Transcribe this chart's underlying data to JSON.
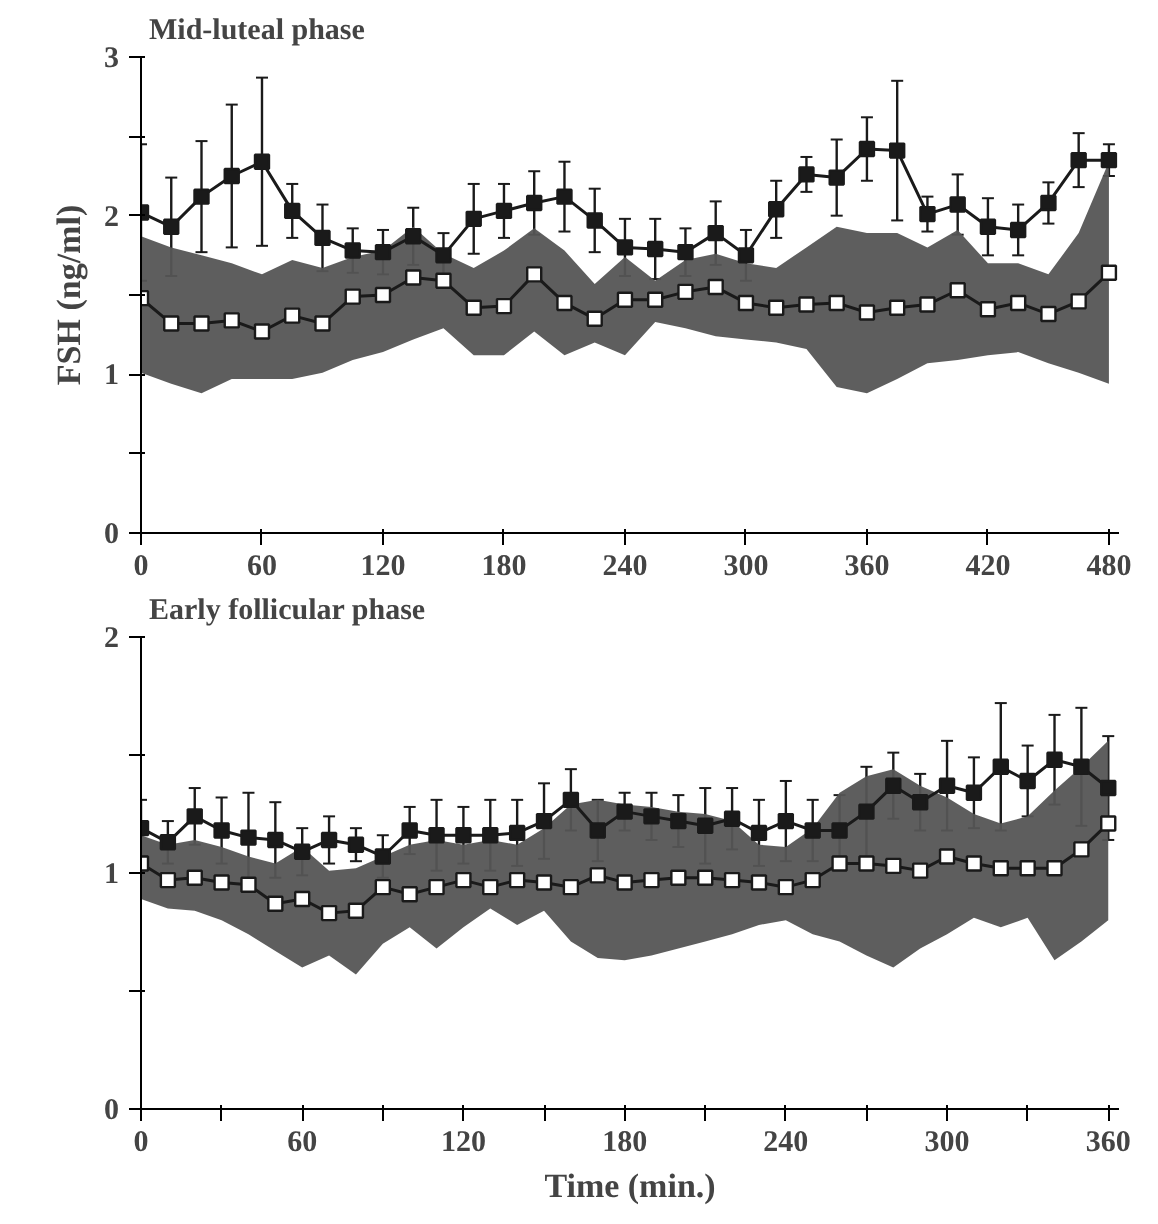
{
  "chart_data": [
    {
      "type": "line",
      "title": "Mid-luteal phase",
      "ylabel": "FSH (ng/ml)",
      "x": [
        0,
        15,
        30,
        45,
        60,
        75,
        90,
        105,
        120,
        135,
        150,
        165,
        180,
        195,
        210,
        225,
        240,
        255,
        270,
        285,
        300,
        315,
        330,
        345,
        360,
        375,
        390,
        405,
        420,
        435,
        450,
        465,
        480
      ],
      "xlim": [
        0,
        485
      ],
      "ylim": [
        0,
        3
      ],
      "xticks": [
        0,
        60,
        120,
        180,
        240,
        300,
        360,
        420,
        480
      ],
      "yticks": [
        0,
        {
          "value": 0.5,
          "label": null
        },
        1,
        {
          "value": 1.5,
          "label": null
        },
        2,
        {
          "value": 2.5,
          "label": null
        },
        3
      ],
      "series": [
        {
          "marker": "square",
          "color": "#ffffff",
          "lower": [
            1.01,
            0.94,
            0.88,
            0.97,
            0.97,
            0.97,
            1.01,
            1.09,
            1.14,
            1.22,
            1.29,
            1.12,
            1.12,
            1.27,
            1.12,
            1.2,
            1.12,
            1.33,
            1.29,
            1.24,
            1.22,
            1.2,
            1.16,
            0.92,
            0.88,
            0.97,
            1.07,
            1.09,
            1.12,
            1.14,
            1.07,
            1.01,
            0.94
          ],
          "upper": [
            1.87,
            1.8,
            1.75,
            1.7,
            1.63,
            1.72,
            1.67,
            1.74,
            1.78,
            1.93,
            1.76,
            1.67,
            1.78,
            1.92,
            1.78,
            1.57,
            1.74,
            1.59,
            1.72,
            1.76,
            1.7,
            1.67,
            1.8,
            1.93,
            1.89,
            1.89,
            1.8,
            1.91,
            1.7,
            1.7,
            1.63,
            1.89,
            2.34
          ],
          "values": [
            1.48,
            1.32,
            1.32,
            1.34,
            1.27,
            1.37,
            1.32,
            1.49,
            1.5,
            1.61,
            1.59,
            1.42,
            1.43,
            1.63,
            1.45,
            1.35,
            1.47,
            1.47,
            1.52,
            1.55,
            1.45,
            1.42,
            1.44,
            1.45,
            1.39,
            1.42,
            1.44,
            1.53,
            1.41,
            1.45,
            1.38,
            1.46,
            1.64
          ]
        },
        {
          "marker": "square",
          "color": "#1a1a1a",
          "values": [
            2.02,
            1.93,
            2.12,
            2.25,
            2.34,
            2.03,
            1.86,
            1.78,
            1.77,
            1.87,
            1.75,
            1.98,
            2.03,
            2.08,
            2.12,
            1.97,
            1.8,
            1.79,
            1.77,
            1.89,
            1.75,
            2.04,
            2.26,
            2.24,
            2.42,
            2.41,
            2.01,
            2.07,
            1.93,
            1.91,
            2.08,
            2.35,
            2.35
          ],
          "errors": [
            0.43,
            0.31,
            0.35,
            0.45,
            0.53,
            0.17,
            0.21,
            0.14,
            0.14,
            0.18,
            0.14,
            0.22,
            0.17,
            0.2,
            0.22,
            0.2,
            0.18,
            0.19,
            0.15,
            0.2,
            0.16,
            0.18,
            0.11,
            0.24,
            0.2,
            0.44,
            0.11,
            0.19,
            0.18,
            0.16,
            0.13,
            0.17,
            0.1
          ]
        }
      ]
    },
    {
      "type": "line",
      "title": "Early follicular phase",
      "xlabel": "Time (min.)",
      "x": [
        0,
        10,
        20,
        30,
        40,
        50,
        60,
        70,
        80,
        90,
        100,
        110,
        120,
        130,
        140,
        150,
        160,
        170,
        180,
        190,
        200,
        210,
        220,
        230,
        240,
        250,
        260,
        270,
        280,
        290,
        300,
        310,
        320,
        330,
        340,
        350,
        360
      ],
      "xlim": [
        0,
        364
      ],
      "ylim": [
        0,
        2
      ],
      "xticks": [
        0,
        {
          "value": 30,
          "label": null
        },
        60,
        {
          "value": 90,
          "label": null
        },
        120,
        {
          "value": 150,
          "label": null
        },
        180,
        {
          "value": 210,
          "label": null
        },
        240,
        {
          "value": 270,
          "label": null
        },
        300,
        {
          "value": 330,
          "label": null
        },
        360
      ],
      "yticks": [
        0,
        {
          "value": 0.5,
          "label": null
        },
        1,
        {
          "value": 1.5,
          "label": null
        },
        2
      ],
      "series": [
        {
          "marker": "square",
          "color": "#ffffff",
          "lower": [
            0.89,
            0.85,
            0.84,
            0.8,
            0.74,
            0.67,
            0.6,
            0.65,
            0.57,
            0.7,
            0.77,
            0.68,
            0.77,
            0.85,
            0.78,
            0.84,
            0.71,
            0.64,
            0.63,
            0.65,
            0.68,
            0.71,
            0.74,
            0.78,
            0.8,
            0.74,
            0.71,
            0.65,
            0.6,
            0.68,
            0.74,
            0.81,
            0.77,
            0.81,
            0.63,
            0.71,
            0.8
          ],
          "upper": [
            1.16,
            1.12,
            1.14,
            1.11,
            1.07,
            1.04,
            1.11,
            1.01,
            1.02,
            1.07,
            1.12,
            1.14,
            1.12,
            1.14,
            1.12,
            1.19,
            1.29,
            1.31,
            1.29,
            1.28,
            1.26,
            1.25,
            1.22,
            1.12,
            1.11,
            1.19,
            1.34,
            1.41,
            1.44,
            1.37,
            1.32,
            1.25,
            1.21,
            1.24,
            1.35,
            1.45,
            1.56
          ],
          "values": [
            1.04,
            0.97,
            0.98,
            0.96,
            0.95,
            0.87,
            0.89,
            0.83,
            0.84,
            0.94,
            0.91,
            0.94,
            0.97,
            0.94,
            0.97,
            0.96,
            0.94,
            0.99,
            0.96,
            0.97,
            0.98,
            0.98,
            0.97,
            0.96,
            0.94,
            0.97,
            1.04,
            1.04,
            1.03,
            1.01,
            1.07,
            1.04,
            1.02,
            1.02,
            1.02,
            1.1,
            1.21
          ]
        },
        {
          "marker": "square",
          "color": "#1a1a1a",
          "values": [
            1.19,
            1.13,
            1.24,
            1.18,
            1.15,
            1.14,
            1.09,
            1.14,
            1.12,
            1.07,
            1.18,
            1.16,
            1.16,
            1.16,
            1.17,
            1.22,
            1.31,
            1.18,
            1.26,
            1.24,
            1.22,
            1.2,
            1.23,
            1.17,
            1.22,
            1.18,
            1.18,
            1.26,
            1.37,
            1.3,
            1.37,
            1.34,
            1.45,
            1.39,
            1.48,
            1.45,
            1.36
          ],
          "errors": [
            0.12,
            0.09,
            0.12,
            0.14,
            0.19,
            0.16,
            0.1,
            0.1,
            0.07,
            0.09,
            0.1,
            0.15,
            0.12,
            0.15,
            0.14,
            0.16,
            0.13,
            0.13,
            0.08,
            0.1,
            0.11,
            0.16,
            0.13,
            0.14,
            0.17,
            0.13,
            0.15,
            0.19,
            0.14,
            0.12,
            0.19,
            0.15,
            0.27,
            0.15,
            0.19,
            0.25,
            0.22
          ]
        }
      ]
    }
  ]
}
